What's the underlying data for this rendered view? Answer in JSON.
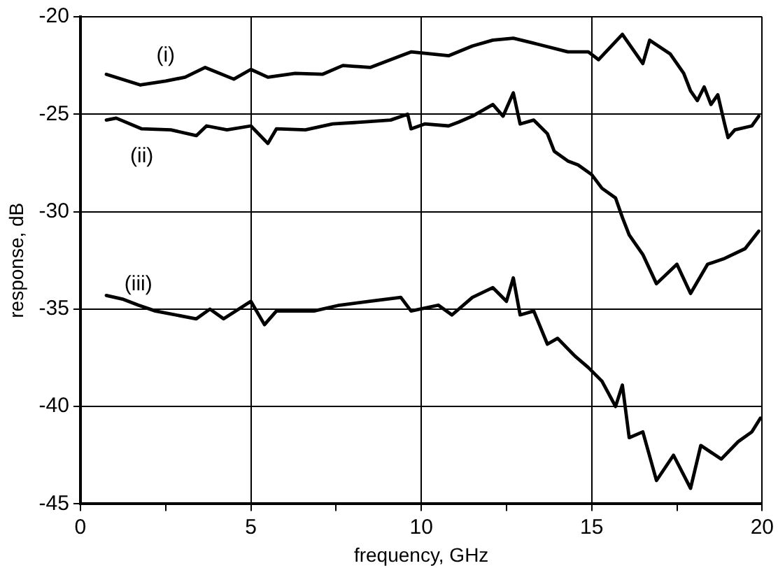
{
  "chart_data": {
    "type": "line",
    "xlabel": "frequency, GHz",
    "ylabel": "response, dB",
    "xlim": [
      0,
      20
    ],
    "ylim": [
      -45,
      -20
    ],
    "xticks": [
      0,
      {
        "value": 2.5,
        "label": null
      },
      5,
      {
        "value": 7.5,
        "label": null
      },
      10,
      {
        "value": 12.5,
        "label": null
      },
      15,
      {
        "value": 17.5,
        "label": null
      },
      20
    ],
    "yticks": [
      -45,
      -40,
      -35,
      -30,
      -25,
      -20
    ],
    "grid": true,
    "legend": false,
    "marker": "none",
    "line_style": "solid",
    "series": [
      {
        "name": "(i)",
        "color": "#000000",
        "x": [
          0.76,
          1.76,
          2.5,
          3.07,
          3.66,
          4.5,
          5,
          5.5,
          6.3,
          7.1,
          7.7,
          8.5,
          9.4,
          9.7,
          10.8,
          11.5,
          12.1,
          12.7,
          13.4,
          14.3,
          14.9,
          15.2,
          15.9,
          16.5,
          16.7,
          17.3,
          17.7,
          17.9,
          18.1,
          18.3,
          18.5,
          18.7,
          18.9,
          19.0,
          19.2,
          19.7,
          19.9
        ],
        "values": [
          -22.95,
          -23.5,
          -23.3,
          -23.1,
          -22.6,
          -23.2,
          -22.7,
          -23.1,
          -22.9,
          -22.95,
          -22.5,
          -22.6,
          -22.0,
          -21.8,
          -22.0,
          -21.5,
          -21.2,
          -21.1,
          -21.4,
          -21.8,
          -21.8,
          -22.2,
          -20.9,
          -22.4,
          -21.2,
          -21.9,
          -22.9,
          -23.8,
          -24.3,
          -23.6,
          -24.5,
          -24.0,
          -25.5,
          -26.2,
          -25.8,
          -25.6,
          -25.1
        ]
      },
      {
        "name": "(ii)",
        "color": "#000000",
        "x": [
          0.76,
          1.05,
          1.8,
          2.65,
          3.4,
          3.7,
          4.3,
          5.0,
          5.5,
          5.75,
          6.6,
          7.4,
          8.3,
          9.1,
          9.6,
          9.7,
          10.1,
          10.8,
          11.1,
          11.5,
          12.1,
          12.4,
          12.7,
          12.9,
          13.3,
          13.7,
          13.9,
          14.3,
          14.6,
          15.0,
          15.3,
          15.7,
          15.9,
          16.1,
          16.5,
          16.9,
          17.5,
          17.9,
          18.4,
          18.9,
          19.5,
          19.9
        ],
        "values": [
          -25.3,
          -25.2,
          -25.75,
          -25.8,
          -26.1,
          -25.6,
          -25.8,
          -25.6,
          -26.5,
          -25.75,
          -25.8,
          -25.5,
          -25.4,
          -25.3,
          -25.0,
          -25.75,
          -25.5,
          -25.6,
          -25.4,
          -25.1,
          -24.5,
          -25.1,
          -23.9,
          -25.5,
          -25.3,
          -26.0,
          -26.9,
          -27.4,
          -27.6,
          -28.1,
          -28.8,
          -29.3,
          -30.3,
          -31.2,
          -32.2,
          -33.7,
          -32.7,
          -34.2,
          -32.7,
          -32.4,
          -31.9,
          -31.0
        ]
      },
      {
        "name": "(iii)",
        "color": "#000000",
        "x": [
          0.76,
          1.26,
          1.7,
          2.2,
          3.4,
          3.8,
          4.2,
          5.0,
          5.4,
          5.75,
          6.85,
          7.6,
          8.5,
          9.4,
          9.7,
          10.5,
          10.9,
          11.5,
          12.1,
          12.5,
          12.7,
          12.9,
          13.3,
          13.7,
          14.0,
          14.5,
          14.9,
          15.3,
          15.7,
          15.9,
          16.1,
          16.5,
          16.9,
          17.4,
          17.9,
          18.2,
          18.8,
          19.3,
          19.7,
          19.95
        ],
        "values": [
          -34.3,
          -34.5,
          -34.8,
          -35.1,
          -35.5,
          -35.0,
          -35.5,
          -34.6,
          -35.8,
          -35.1,
          -35.1,
          -34.8,
          -34.6,
          -34.4,
          -35.1,
          -34.8,
          -35.3,
          -34.4,
          -33.9,
          -34.6,
          -33.4,
          -35.3,
          -35.1,
          -36.8,
          -36.5,
          -37.4,
          -38.0,
          -38.7,
          -40.0,
          -38.9,
          -41.6,
          -41.3,
          -43.8,
          -42.5,
          -44.2,
          -42.0,
          -42.7,
          -41.8,
          -41.3,
          -40.6
        ]
      }
    ]
  }
}
